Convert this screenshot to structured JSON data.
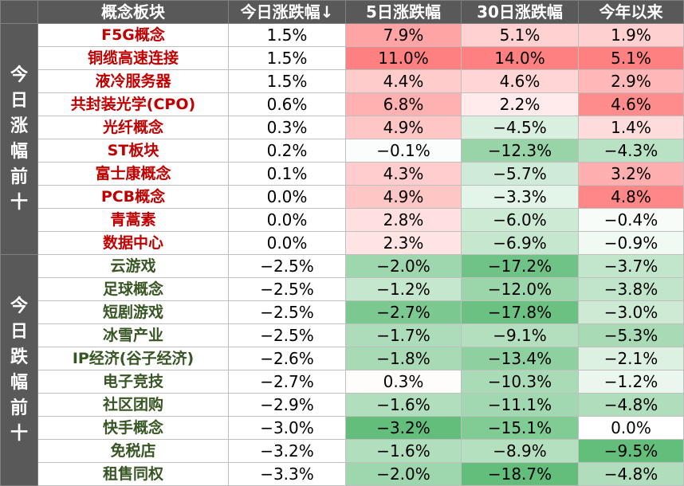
{
  "header": {
    "name": "概念板块",
    "today": "今日涨跌幅↓",
    "d5": "5日涨跌幅",
    "d30": "30日涨跌幅",
    "ytd": "今年以来"
  },
  "groups": {
    "top": "今日涨幅前十",
    "bottom": "今日跌幅前十"
  },
  "colors": {
    "header_bg": "#595959",
    "gain_text": "#c00000",
    "loss_text": "#375623",
    "positive_max": "#ff8080",
    "negative_max": "#63be7b"
  },
  "rows": [
    {
      "name": "F5G概念",
      "today": "1.5%",
      "d5": "7.9%",
      "d30": "5.1%",
      "ytd": "1.9%"
    },
    {
      "name": "铜缆高速连接",
      "today": "1.5%",
      "d5": "11.0%",
      "d30": "14.0%",
      "ytd": "5.1%"
    },
    {
      "name": "液冷服务器",
      "today": "1.5%",
      "d5": "4.4%",
      "d30": "4.6%",
      "ytd": "2.9%"
    },
    {
      "name": "共封装光学(CPO)",
      "today": "0.6%",
      "d5": "6.8%",
      "d30": "2.2%",
      "ytd": "4.6%"
    },
    {
      "name": "光纤概念",
      "today": "0.3%",
      "d5": "4.9%",
      "d30": "−4.5%",
      "ytd": "1.4%"
    },
    {
      "name": "ST板块",
      "today": "0.2%",
      "d5": "−0.1%",
      "d30": "−12.3%",
      "ytd": "−4.3%"
    },
    {
      "name": "富士康概念",
      "today": "0.1%",
      "d5": "4.3%",
      "d30": "−5.7%",
      "ytd": "3.2%"
    },
    {
      "name": "PCB概念",
      "today": "0.0%",
      "d5": "4.9%",
      "d30": "−3.3%",
      "ytd": "4.8%"
    },
    {
      "name": "青蒿素",
      "today": "0.0%",
      "d5": "2.8%",
      "d30": "−6.0%",
      "ytd": "−0.4%"
    },
    {
      "name": "数据中心",
      "today": "0.0%",
      "d5": "2.3%",
      "d30": "−6.9%",
      "ytd": "−0.9%"
    },
    {
      "name": "云游戏",
      "today": "−2.5%",
      "d5": "−2.0%",
      "d30": "−17.2%",
      "ytd": "−3.7%"
    },
    {
      "name": "足球概念",
      "today": "−2.5%",
      "d5": "−1.2%",
      "d30": "−12.0%",
      "ytd": "−3.8%"
    },
    {
      "name": "短剧游戏",
      "today": "−2.5%",
      "d5": "−2.7%",
      "d30": "−17.8%",
      "ytd": "−3.0%"
    },
    {
      "name": "冰雪产业",
      "today": "−2.5%",
      "d5": "−1.7%",
      "d30": "−9.1%",
      "ytd": "−5.3%"
    },
    {
      "name": "IP经济(谷子经济)",
      "today": "−2.6%",
      "d5": "−1.8%",
      "d30": "−13.4%",
      "ytd": "−2.1%"
    },
    {
      "name": "电子竞技",
      "today": "−2.7%",
      "d5": "0.3%",
      "d30": "−10.3%",
      "ytd": "−1.2%"
    },
    {
      "name": "社区团购",
      "today": "−2.9%",
      "d5": "−1.6%",
      "d30": "−11.1%",
      "ytd": "−4.8%"
    },
    {
      "name": "快手概念",
      "today": "−3.0%",
      "d5": "−3.2%",
      "d30": "−15.1%",
      "ytd": "0.0%"
    },
    {
      "name": "免税店",
      "today": "−3.2%",
      "d5": "−1.6%",
      "d30": "−8.9%",
      "ytd": "−9.5%"
    },
    {
      "name": "租售同权",
      "today": "−3.3%",
      "d5": "−2.0%",
      "d30": "−18.7%",
      "ytd": "−4.8%"
    }
  ]
}
